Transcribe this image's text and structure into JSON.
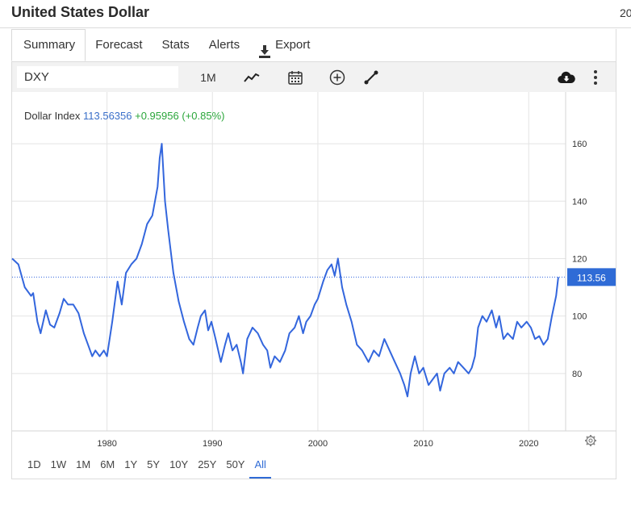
{
  "header": {
    "title": "United States Dollar",
    "title_right": "20"
  },
  "tabs": [
    {
      "label": "Summary",
      "active": true
    },
    {
      "label": "Forecast"
    },
    {
      "label": "Stats"
    },
    {
      "label": "Alerts"
    },
    {
      "label": "Export",
      "icon": "download-icon"
    }
  ],
  "toolbar": {
    "symbol_value": "DXY",
    "interval_label": "1M",
    "icons": [
      "line-chart-icon",
      "calendar-icon",
      "add-circle-icon",
      "draw-line-icon",
      "cloud-download-icon",
      "more-vert-icon"
    ]
  },
  "legend": {
    "name": "Dollar Index",
    "value": "113.56356",
    "change": "+0.95956",
    "change_pct": "(+0.85%)"
  },
  "ranges": [
    {
      "label": "1D"
    },
    {
      "label": "1W"
    },
    {
      "label": "1M"
    },
    {
      "label": "6M"
    },
    {
      "label": "1Y"
    },
    {
      "label": "5Y"
    },
    {
      "label": "10Y"
    },
    {
      "label": "25Y"
    },
    {
      "label": "50Y"
    },
    {
      "label": "All",
      "active": true
    }
  ],
  "colors": {
    "line": "#3366dd",
    "accent": "#2f6bd6",
    "change_positive": "#2aa63a",
    "last_badge": "#2f6bd6",
    "grid": "#e4e4e4"
  },
  "chart_data": {
    "type": "line",
    "series": [
      {
        "name": "Dollar Index",
        "x": [
          1971.0,
          1971.6,
          1972.2,
          1972.8,
          1973.0,
          1973.4,
          1973.7,
          1974.2,
          1974.6,
          1975.0,
          1975.5,
          1975.9,
          1976.3,
          1976.8,
          1977.3,
          1977.8,
          1978.2,
          1978.6,
          1978.9,
          1979.3,
          1979.7,
          1980.0,
          1980.5,
          1981.0,
          1981.4,
          1981.8,
          1982.3,
          1982.8,
          1983.3,
          1983.8,
          1984.3,
          1984.8,
          1985.0,
          1985.2,
          1985.5,
          1985.8,
          1986.3,
          1986.8,
          1987.3,
          1987.8,
          1988.2,
          1988.6,
          1988.9,
          1989.3,
          1989.6,
          1989.9,
          1990.3,
          1990.8,
          1991.2,
          1991.5,
          1991.9,
          1992.3,
          1992.7,
          1992.9,
          1993.3,
          1993.8,
          1994.3,
          1994.8,
          1995.2,
          1995.5,
          1995.9,
          1996.4,
          1996.9,
          1997.3,
          1997.8,
          1998.2,
          1998.6,
          1998.9,
          1999.3,
          1999.7,
          2000.0,
          2000.5,
          2000.9,
          2001.3,
          2001.6,
          2001.9,
          2002.3,
          2002.7,
          2003.2,
          2003.7,
          2004.2,
          2004.8,
          2005.3,
          2005.8,
          2006.3,
          2006.8,
          2007.3,
          2007.8,
          2008.2,
          2008.5,
          2008.8,
          2009.2,
          2009.6,
          2010.0,
          2010.5,
          2010.9,
          2011.3,
          2011.6,
          2012.0,
          2012.5,
          2012.9,
          2013.3,
          2013.8,
          2014.3,
          2014.6,
          2014.9,
          2015.2,
          2015.6,
          2016.0,
          2016.5,
          2016.9,
          2017.2,
          2017.6,
          2018.0,
          2018.5,
          2018.9,
          2019.3,
          2019.8,
          2020.2,
          2020.6,
          2021.0,
          2021.4,
          2021.8,
          2022.2,
          2022.6,
          2022.8
        ],
        "values": [
          120,
          118,
          110,
          107,
          108,
          98,
          94,
          102,
          97,
          96,
          101,
          106,
          104,
          104,
          101,
          94,
          90,
          86,
          88,
          86,
          88,
          86,
          98,
          112,
          104,
          115,
          118,
          120,
          125,
          132,
          135,
          145,
          155,
          160,
          140,
          130,
          115,
          105,
          98,
          92,
          90,
          96,
          100,
          102,
          95,
          98,
          92,
          84,
          90,
          94,
          88,
          90,
          84,
          80,
          92,
          96,
          94,
          90,
          88,
          82,
          86,
          84,
          88,
          94,
          96,
          100,
          94,
          98,
          100,
          104,
          106,
          112,
          116,
          118,
          114,
          120,
          110,
          104,
          98,
          90,
          88,
          84,
          88,
          86,
          92,
          88,
          84,
          80,
          76,
          72,
          80,
          86,
          80,
          82,
          76,
          78,
          80,
          74,
          80,
          82,
          80,
          84,
          82,
          80,
          82,
          86,
          96,
          100,
          98,
          102,
          96,
          100,
          92,
          94,
          92,
          98,
          96,
          98,
          96,
          92,
          93,
          90,
          92,
          100,
          107,
          113.56
        ]
      }
    ],
    "ylim": [
      60,
      178
    ],
    "xlim": [
      1971,
      2023.5
    ],
    "y_ticks": [
      80,
      100,
      120,
      140,
      160
    ],
    "x_ticks": [
      1980,
      1990,
      2000,
      2010,
      2020
    ],
    "last_value_label": "113.56",
    "last_value": 113.56,
    "grid": true
  }
}
